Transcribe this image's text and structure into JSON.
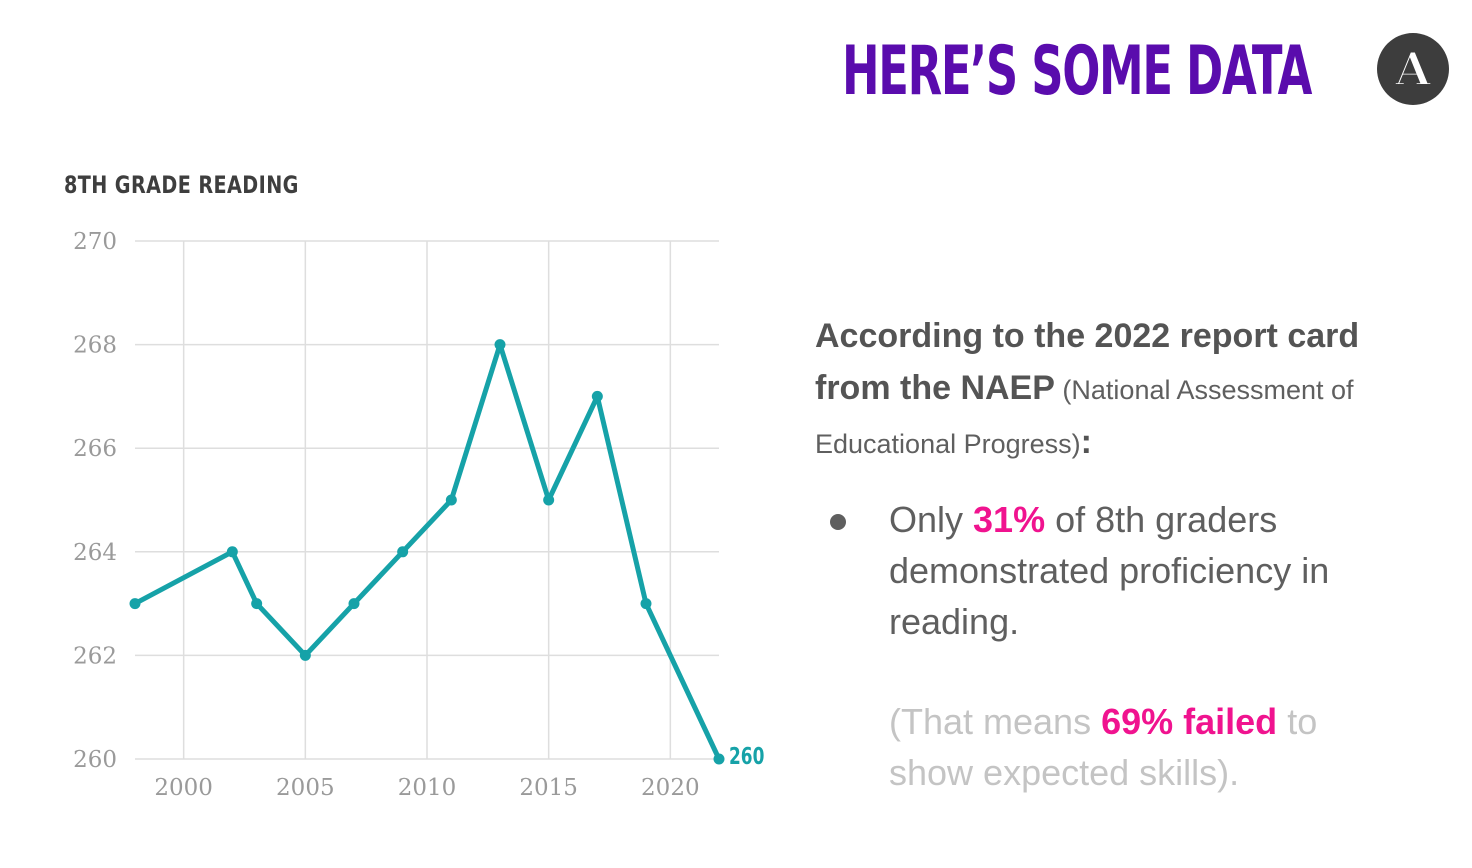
{
  "header": {
    "title": "HERE’S SOME DATA",
    "title_color": "#5a0cad",
    "logo_letter": "A"
  },
  "chart_data": {
    "type": "line",
    "title": "8TH GRADE READING",
    "xlabel": "",
    "ylabel": "",
    "x": [
      1998,
      2002,
      2003,
      2005,
      2007,
      2009,
      2011,
      2013,
      2015,
      2017,
      2019,
      2022
    ],
    "series": [
      {
        "name": "8th grade reading score",
        "values": [
          263,
          264,
          263,
          262,
          263,
          264,
          265,
          268,
          265,
          267,
          263,
          260
        ],
        "color": "#16a2a8"
      }
    ],
    "end_label": "260",
    "xlim": [
      1998,
      2022
    ],
    "ylim": [
      260,
      270
    ],
    "xticks": [
      2000,
      2005,
      2010,
      2015,
      2020
    ],
    "yticks": [
      260,
      262,
      264,
      266,
      268,
      270
    ],
    "grid": true
  },
  "text": {
    "intro_bold": "According to the 2022 report card from the NAEP",
    "intro_paren": " (National Assessment of Educational Progress)",
    "intro_colon": ":",
    "bullet_pre": "Only ",
    "bullet_highlight": "31%",
    "bullet_post": " of 8th graders demonstrated proficiency in reading.",
    "note_pre": "(That means ",
    "note_highlight": "69% failed",
    "note_post": " to show expected skills).",
    "highlight_color": "#f0138f"
  }
}
